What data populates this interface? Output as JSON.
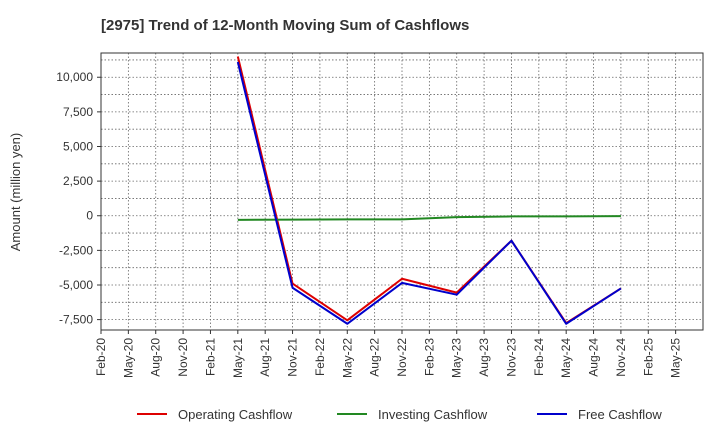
{
  "chart_data": {
    "type": "line",
    "title": "[2975]  Trend of 12-Month Moving Sum of Cashflows",
    "ylabel": "Amount (million yen)",
    "xlabel": "",
    "ylim": [
      -8250,
      11750
    ],
    "yticks": [
      10000,
      7500,
      5000,
      2500,
      0,
      -2500,
      -5000,
      -7500
    ],
    "ytick_labels": [
      "10,000",
      "7,500",
      "5,000",
      "2,500",
      "0",
      "-2,500",
      "-5,000",
      "-7,500"
    ],
    "x_categories": [
      "Feb-20",
      "May-20",
      "Aug-20",
      "Nov-20",
      "Feb-21",
      "May-21",
      "Aug-21",
      "Nov-21",
      "Feb-22",
      "May-22",
      "Aug-22",
      "Nov-22",
      "Feb-23",
      "May-23",
      "Aug-23",
      "Nov-23",
      "Feb-24",
      "May-24",
      "Aug-24",
      "Nov-24",
      "Feb-25",
      "May-25"
    ],
    "grid": true,
    "legend_position": "bottom",
    "series": [
      {
        "name": "Operating Cashflow",
        "color": "#dd0000",
        "x": [
          "May-21",
          "Nov-21",
          "May-22",
          "Nov-22",
          "May-23",
          "Nov-23",
          "May-24",
          "Nov-24"
        ],
        "values": [
          11500,
          -4900,
          -7550,
          -4550,
          -5550,
          -1800,
          -7750,
          -5250
        ]
      },
      {
        "name": "Investing Cashflow",
        "color": "#228822",
        "x": [
          "May-21",
          "Nov-21",
          "May-22",
          "Nov-22",
          "May-23",
          "Nov-23",
          "May-24",
          "Nov-24"
        ],
        "values": [
          -300,
          -280,
          -260,
          -260,
          -100,
          -50,
          -50,
          -30
        ]
      },
      {
        "name": "Free Cashflow",
        "color": "#0000cc",
        "x": [
          "May-21",
          "Nov-21",
          "May-22",
          "Nov-22",
          "May-23",
          "Nov-23",
          "May-24",
          "Nov-24"
        ],
        "values": [
          11100,
          -5200,
          -7800,
          -4850,
          -5700,
          -1800,
          -7800,
          -5250
        ]
      }
    ]
  }
}
